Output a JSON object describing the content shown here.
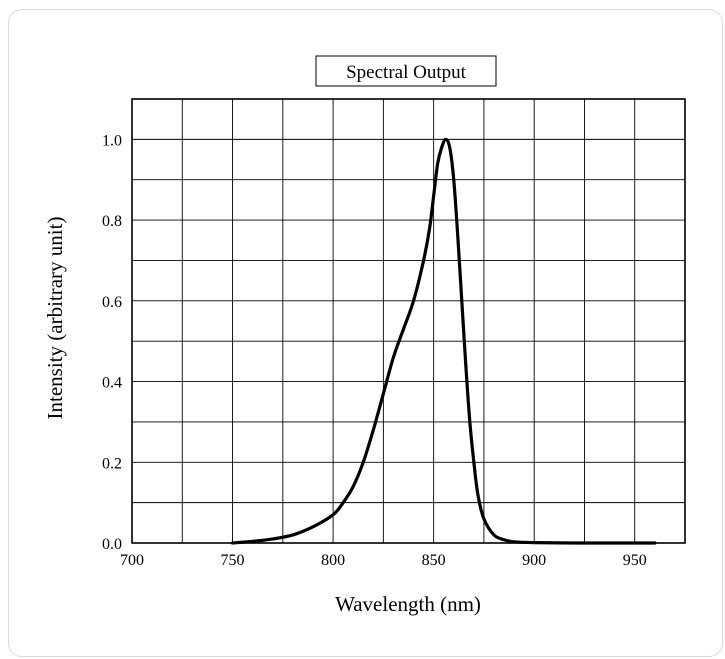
{
  "chart_data": {
    "type": "line",
    "title": "Spectral Output",
    "xlabel": "Wavelength (nm)",
    "ylabel": "Intensity (arbitrary unit)",
    "xlim": [
      700,
      975
    ],
    "ylim": [
      0,
      1.1
    ],
    "x_ticks": [
      700,
      750,
      800,
      850,
      900,
      950
    ],
    "x_tick_labels": [
      "700",
      "750",
      "800",
      "850",
      "900",
      "950"
    ],
    "y_ticks": [
      0.0,
      0.2,
      0.4,
      0.6,
      0.8,
      1.0
    ],
    "y_tick_labels": [
      "0.0",
      "0.2",
      "0.4",
      "0.6",
      "0.8",
      "1.0"
    ],
    "grid": true,
    "grid_x_step": 25,
    "grid_y_step": 0.1,
    "series": [
      {
        "color": "#000000",
        "x": [
          750,
          760,
          770,
          780,
          790,
          800,
          805,
          810,
          815,
          820,
          825,
          830,
          835,
          840,
          845,
          848,
          850,
          852,
          854,
          856,
          858,
          860,
          862,
          864,
          866,
          868,
          870,
          872,
          875,
          880,
          885,
          890,
          900,
          920,
          940,
          960
        ],
        "y": [
          0.0,
          0.004,
          0.01,
          0.02,
          0.04,
          0.07,
          0.1,
          0.14,
          0.2,
          0.28,
          0.37,
          0.46,
          0.53,
          0.6,
          0.7,
          0.78,
          0.86,
          0.94,
          0.98,
          1.0,
          0.98,
          0.9,
          0.76,
          0.6,
          0.44,
          0.3,
          0.2,
          0.12,
          0.06,
          0.02,
          0.008,
          0.003,
          0.001,
          0.0,
          0.0,
          0.0
        ]
      }
    ]
  }
}
